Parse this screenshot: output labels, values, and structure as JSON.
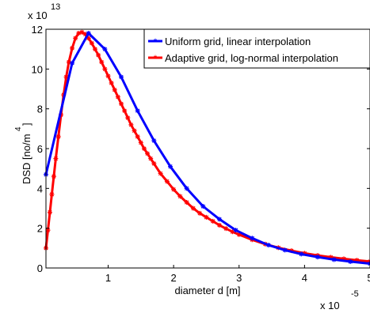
{
  "chart_data": {
    "type": "line",
    "xlabel": "diameter d [m]",
    "ylabel": "DSD [no/m",
    "ylabel_exp": "4",
    "ylabel_close": "]",
    "x_multiplier": {
      "base": "x 10",
      "exp": "-5"
    },
    "y_multiplier": {
      "base": "x 10",
      "exp": "13"
    },
    "xlim": [
      0.05,
      5.0
    ],
    "ylim": [
      0,
      12
    ],
    "x_ticks": [
      1,
      2,
      3,
      4,
      5
    ],
    "x_tick_labels": [
      "1",
      "2",
      "3",
      "4",
      "5"
    ],
    "y_ticks": [
      0,
      2,
      4,
      6,
      8,
      10,
      12
    ],
    "y_tick_labels": [
      "0",
      "2",
      "4",
      "6",
      "8",
      "10",
      "12"
    ],
    "grid": false,
    "legend_position": "top-right",
    "series": [
      {
        "name": "Uniform grid, linear interpolation",
        "color": "#0000ff",
        "x": [
          0.05,
          0.45,
          0.7,
          0.95,
          1.2,
          1.45,
          1.7,
          1.95,
          2.2,
          2.45,
          2.7,
          2.95,
          3.2,
          3.45,
          3.7,
          3.95,
          4.2,
          4.45,
          4.7,
          5.0
        ],
        "y": [
          4.7,
          10.3,
          11.8,
          11.0,
          9.6,
          7.9,
          6.4,
          5.1,
          4.0,
          3.1,
          2.45,
          1.9,
          1.5,
          1.15,
          0.9,
          0.7,
          0.55,
          0.42,
          0.32,
          0.22
        ]
      },
      {
        "name": "Adaptive grid, log-normal interpolation",
        "color": "#ff0000",
        "x": [
          0.05,
          0.08,
          0.11,
          0.14,
          0.17,
          0.2,
          0.24,
          0.28,
          0.32,
          0.36,
          0.4,
          0.45,
          0.5,
          0.55,
          0.6,
          0.65,
          0.7,
          0.75,
          0.8,
          0.85,
          0.9,
          0.95,
          1.0,
          1.05,
          1.1,
          1.15,
          1.2,
          1.25,
          1.3,
          1.35,
          1.4,
          1.45,
          1.5,
          1.55,
          1.6,
          1.65,
          1.7,
          1.8,
          1.9,
          2.0,
          2.1,
          2.2,
          2.3,
          2.4,
          2.5,
          2.6,
          2.7,
          2.8,
          2.9,
          3.0,
          3.2,
          3.4,
          3.6,
          3.8,
          4.0,
          4.2,
          4.4,
          4.6,
          4.8,
          5.0
        ],
        "y": [
          1.0,
          1.9,
          2.8,
          3.7,
          4.6,
          5.5,
          6.6,
          7.7,
          8.7,
          9.6,
          10.35,
          11.05,
          11.55,
          11.8,
          11.85,
          11.75,
          11.55,
          11.3,
          11.0,
          10.7,
          10.35,
          10.0,
          9.65,
          9.3,
          8.95,
          8.6,
          8.25,
          7.9,
          7.55,
          7.2,
          6.9,
          6.6,
          6.3,
          6.0,
          5.75,
          5.5,
          5.25,
          4.75,
          4.35,
          3.95,
          3.6,
          3.3,
          3.0,
          2.75,
          2.55,
          2.35,
          2.15,
          1.98,
          1.82,
          1.68,
          1.42,
          1.2,
          1.02,
          0.87,
          0.74,
          0.63,
          0.54,
          0.46,
          0.39,
          0.33
        ]
      }
    ]
  }
}
